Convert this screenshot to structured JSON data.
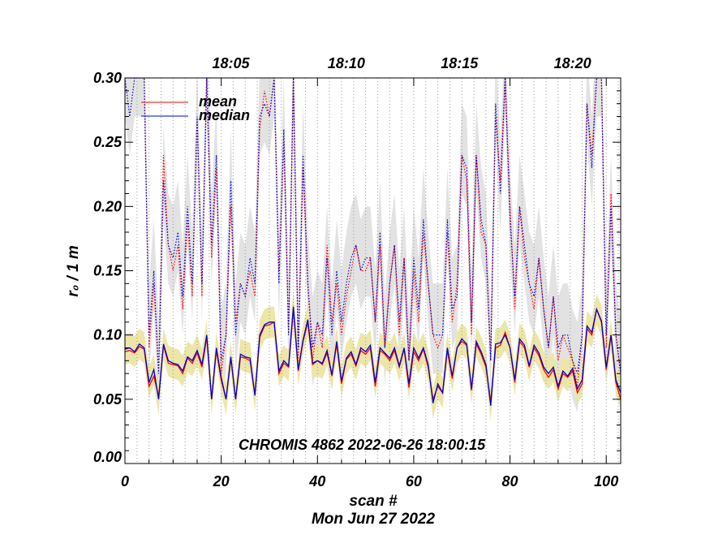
{
  "chart_data": {
    "type": "line",
    "title": "",
    "xlabel": "scan #",
    "ylabel": "r₀ / 1 m",
    "date_label": "Mon Jun 27 2022",
    "annotation": "CHROMIS 4862 2022-06-26 18:00:15",
    "xlim": [
      0,
      103
    ],
    "ylim": [
      0.0,
      0.3
    ],
    "x_ticks": [
      0,
      20,
      40,
      60,
      80,
      100
    ],
    "x_tick_labels": [
      "0",
      "20",
      "40",
      "60",
      "80",
      "100"
    ],
    "y_ticks": [
      0.0,
      0.05,
      0.1,
      0.15,
      0.2,
      0.25,
      0.3
    ],
    "y_tick_labels": [
      "0.00",
      "0.05",
      "0.10",
      "0.15",
      "0.20",
      "0.25",
      "0.30"
    ],
    "time_ticks": [
      {
        "label": "18:05",
        "scan": 22
      },
      {
        "label": "18:10",
        "scan": 46
      },
      {
        "label": "18:15",
        "scan": 69.5
      },
      {
        "label": "18:20",
        "scan": 93
      }
    ],
    "legend": [
      {
        "name": "mean",
        "color": "#ff0000"
      },
      {
        "name": "median",
        "color": "#0000cc"
      }
    ],
    "series": [
      {
        "name": "mean (low band)",
        "color": "#ff0000",
        "style": "solid",
        "values": [
          0.087,
          0.088,
          0.086,
          0.091,
          0.089,
          0.06,
          0.068,
          0.052,
          0.092,
          0.078,
          0.077,
          0.076,
          0.07,
          0.082,
          0.078,
          0.086,
          0.075,
          0.098,
          0.05,
          0.088,
          0.065,
          0.05,
          0.082,
          0.05,
          0.083,
          0.082,
          0.08,
          0.053,
          0.098,
          0.107,
          0.108,
          0.11,
          0.07,
          0.078,
          0.075,
          0.12,
          0.072,
          0.095,
          0.11,
          0.077,
          0.08,
          0.077,
          0.086,
          0.068,
          0.093,
          0.062,
          0.081,
          0.085,
          0.076,
          0.088,
          0.085,
          0.09,
          0.06,
          0.088,
          0.085,
          0.08,
          0.088,
          0.075,
          0.089,
          0.059,
          0.087,
          0.08,
          0.089,
          0.075,
          0.05,
          0.06,
          0.055,
          0.088,
          0.066,
          0.09,
          0.095,
          0.092,
          0.057,
          0.093,
          0.085,
          0.075,
          0.048,
          0.09,
          0.092,
          0.102,
          0.09,
          0.063,
          0.095,
          0.09,
          0.075,
          0.09,
          0.084,
          0.073,
          0.067,
          0.073,
          0.058,
          0.07,
          0.067,
          0.072,
          0.055,
          0.062,
          0.105,
          0.1,
          0.12,
          0.11,
          0.073,
          0.1,
          0.063,
          0.05,
          0.08
        ]
      },
      {
        "name": "median (low band)",
        "color": "#0000cc",
        "style": "solid",
        "values": [
          0.089,
          0.09,
          0.087,
          0.093,
          0.09,
          0.063,
          0.073,
          0.05,
          0.093,
          0.08,
          0.078,
          0.077,
          0.072,
          0.083,
          0.08,
          0.088,
          0.077,
          0.1,
          0.05,
          0.09,
          0.067,
          0.05,
          0.083,
          0.05,
          0.085,
          0.083,
          0.082,
          0.053,
          0.1,
          0.108,
          0.11,
          0.11,
          0.072,
          0.08,
          0.076,
          0.122,
          0.073,
          0.096,
          0.112,
          0.078,
          0.08,
          0.078,
          0.088,
          0.069,
          0.095,
          0.064,
          0.082,
          0.087,
          0.077,
          0.09,
          0.087,
          0.092,
          0.063,
          0.09,
          0.086,
          0.082,
          0.09,
          0.076,
          0.09,
          0.062,
          0.09,
          0.082,
          0.09,
          0.077,
          0.047,
          0.062,
          0.055,
          0.09,
          0.068,
          0.09,
          0.097,
          0.093,
          0.058,
          0.095,
          0.087,
          0.077,
          0.045,
          0.093,
          0.094,
          0.1,
          0.09,
          0.065,
          0.097,
          0.092,
          0.076,
          0.092,
          0.086,
          0.075,
          0.07,
          0.075,
          0.06,
          0.072,
          0.068,
          0.074,
          0.058,
          0.065,
          0.107,
          0.102,
          0.12,
          0.111,
          0.075,
          0.1,
          0.065,
          0.055,
          0.085
        ]
      },
      {
        "name": "mean (high band)",
        "color": "#ff0000",
        "style": "dotted",
        "values": [
          0.3,
          0.3,
          0.3,
          0.3,
          0.3,
          0.09,
          0.14,
          0.07,
          0.24,
          0.17,
          0.15,
          0.17,
          0.12,
          0.19,
          0.13,
          0.27,
          0.13,
          0.3,
          0.16,
          0.23,
          0.07,
          0.1,
          0.2,
          0.11,
          0.14,
          0.13,
          0.15,
          0.13,
          0.26,
          0.29,
          0.27,
          0.3,
          0.15,
          0.25,
          0.1,
          0.3,
          0.08,
          0.23,
          0.14,
          0.08,
          0.11,
          0.09,
          0.17,
          0.11,
          0.14,
          0.1,
          0.13,
          0.15,
          0.17,
          0.15,
          0.15,
          0.16,
          0.11,
          0.17,
          0.09,
          0.14,
          0.17,
          0.1,
          0.16,
          0.08,
          0.15,
          0.11,
          0.18,
          0.14,
          0.1,
          0.09,
          0.1,
          0.18,
          0.11,
          0.14,
          0.24,
          0.22,
          0.1,
          0.24,
          0.18,
          0.17,
          0.08,
          0.27,
          0.22,
          0.3,
          0.2,
          0.12,
          0.2,
          0.16,
          0.14,
          0.12,
          0.16,
          0.12,
          0.09,
          0.13,
          0.08,
          0.1,
          0.09,
          0.08,
          0.06,
          0.1,
          0.28,
          0.24,
          0.3,
          0.3,
          0.09,
          0.21,
          0.1,
          0.07,
          0.14
        ]
      },
      {
        "name": "median (high band)",
        "color": "#0000cc",
        "style": "dotted",
        "values": [
          0.3,
          0.27,
          0.3,
          0.3,
          0.3,
          0.1,
          0.15,
          0.07,
          0.22,
          0.17,
          0.16,
          0.18,
          0.13,
          0.2,
          0.14,
          0.27,
          0.14,
          0.3,
          0.17,
          0.24,
          0.08,
          0.1,
          0.22,
          0.1,
          0.14,
          0.13,
          0.16,
          0.14,
          0.27,
          0.28,
          0.27,
          0.3,
          0.14,
          0.26,
          0.1,
          0.3,
          0.09,
          0.24,
          0.14,
          0.09,
          0.11,
          0.1,
          0.16,
          0.1,
          0.15,
          0.11,
          0.14,
          0.16,
          0.17,
          0.15,
          0.16,
          0.16,
          0.11,
          0.18,
          0.09,
          0.14,
          0.17,
          0.11,
          0.16,
          0.08,
          0.16,
          0.12,
          0.19,
          0.14,
          0.1,
          0.1,
          0.1,
          0.19,
          0.12,
          0.13,
          0.24,
          0.23,
          0.11,
          0.24,
          0.19,
          0.17,
          0.08,
          0.28,
          0.21,
          0.3,
          0.19,
          0.13,
          0.2,
          0.17,
          0.14,
          0.13,
          0.16,
          0.12,
          0.09,
          0.13,
          0.09,
          0.1,
          0.1,
          0.08,
          0.07,
          0.1,
          0.28,
          0.23,
          0.3,
          0.3,
          0.1,
          0.2,
          0.1,
          0.07,
          0.15
        ]
      }
    ],
    "shaded_bands": [
      {
        "name": "low band spread",
        "color": "#ece6a8",
        "upper_offset": 0.012,
        "lower_offset": 0.012
      },
      {
        "name": "high band spread",
        "color": "#e2e2e2",
        "upper_offset": 0.04,
        "lower_offset": 0.03
      }
    ],
    "grid": "vertical dotted lines at each time tick"
  }
}
